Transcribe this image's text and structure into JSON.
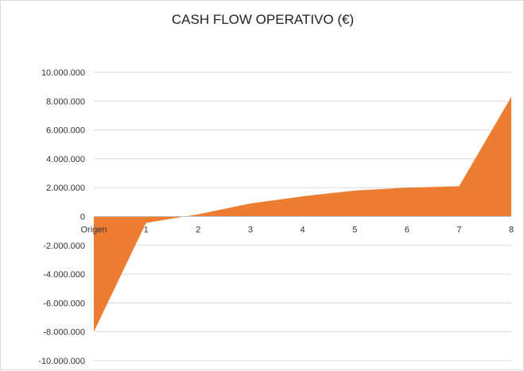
{
  "chart_data": {
    "type": "area",
    "title": "CASH FLOW OPERATIVO (€)",
    "xlabel": "",
    "ylabel": "",
    "categories": [
      "Origen",
      "1",
      "2",
      "3",
      "4",
      "5",
      "6",
      "7",
      "8"
    ],
    "values": [
      -8000000,
      -450000,
      150000,
      900000,
      1400000,
      1800000,
      2000000,
      2100000,
      8300000
    ],
    "ylim": [
      -10000000,
      10000000
    ],
    "y_ticks": [
      10000000,
      8000000,
      6000000,
      4000000,
      2000000,
      0,
      -2000000,
      -4000000,
      -6000000,
      -8000000,
      -10000000
    ],
    "y_tick_labels": [
      "10.000.000",
      "8.000.000",
      "6.000.000",
      "4.000.000",
      "2.000.000",
      "0",
      "-2.000.000",
      "-4.000.000",
      "-6.000.000",
      "-8.000.000",
      "-10.000.000"
    ],
    "grid": true,
    "fill_color": "#ED7D31",
    "grid_color": "#d9d9d9",
    "axis_color": "#bfbfbf"
  }
}
